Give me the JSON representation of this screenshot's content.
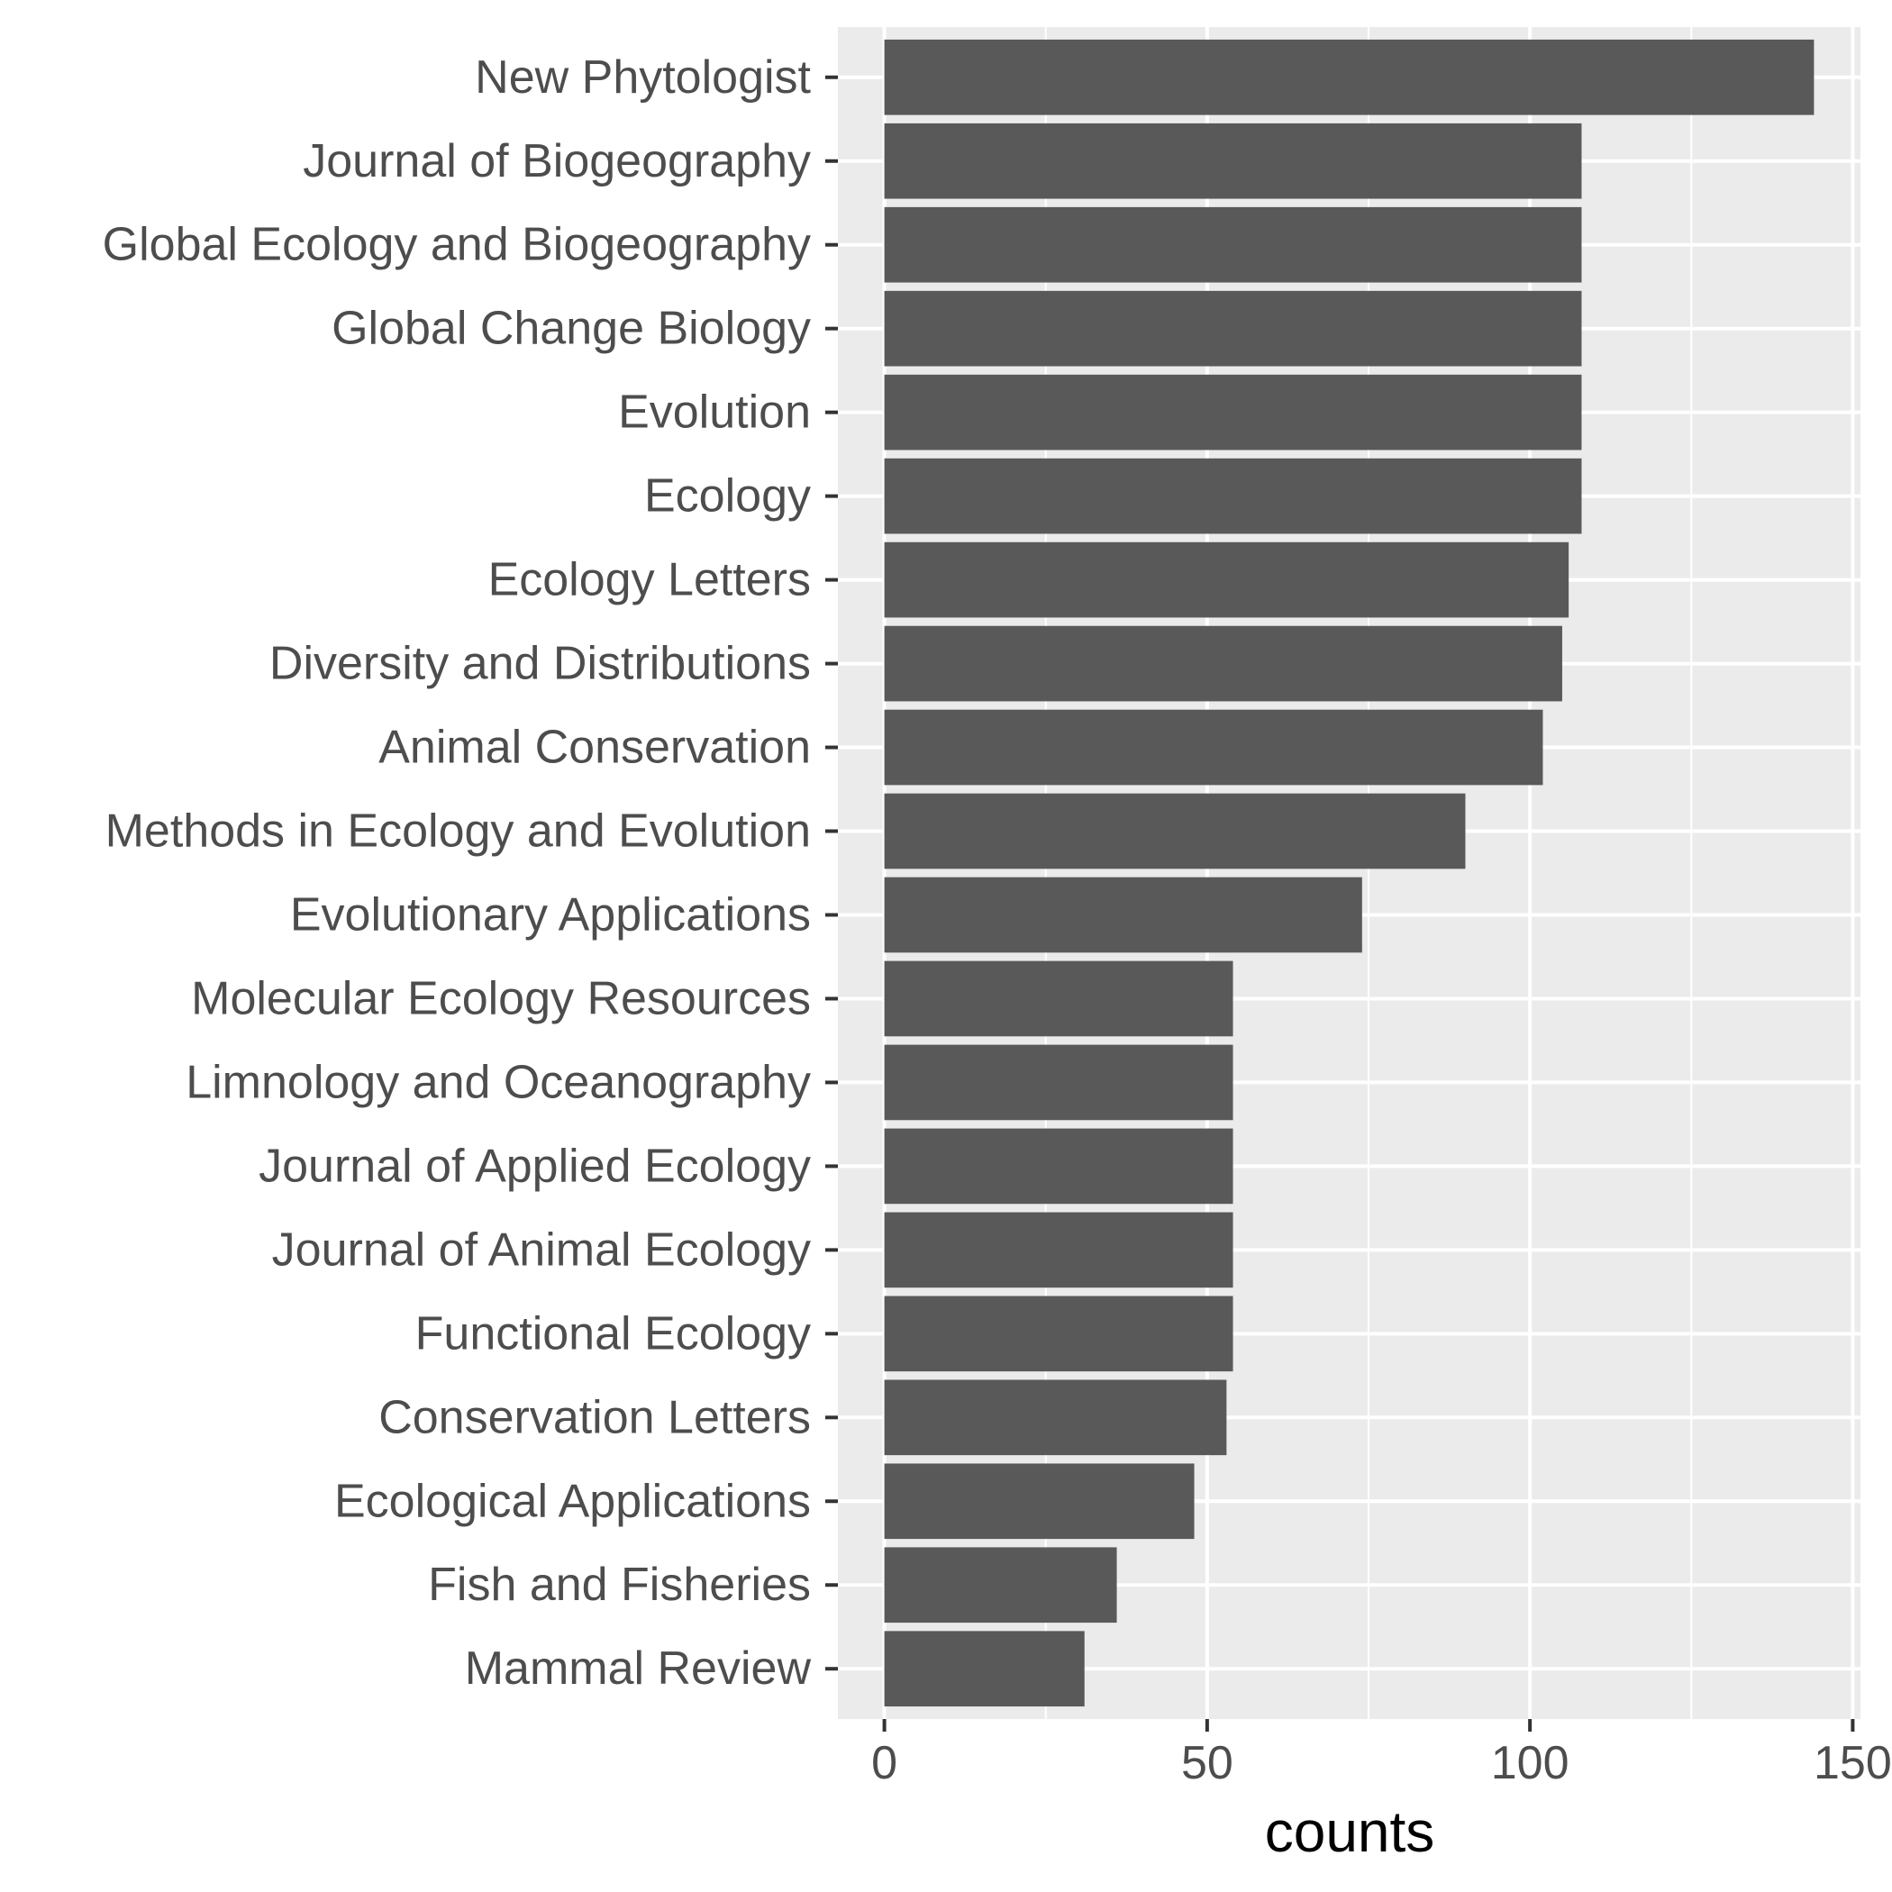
{
  "chart_data": {
    "type": "bar",
    "orientation": "horizontal",
    "categories": [
      "New Phytologist",
      "Journal of Biogeography",
      "Global Ecology and Biogeography",
      "Global Change Biology",
      "Evolution",
      "Ecology",
      "Ecology Letters",
      "Diversity and Distributions",
      "Animal Conservation",
      "Methods in Ecology and Evolution",
      "Evolutionary Applications",
      "Molecular Ecology Resources",
      "Limnology and Oceanography",
      "Journal of Applied Ecology",
      "Journal of Animal Ecology",
      "Functional Ecology",
      "Conservation Letters",
      "Ecological Applications",
      "Fish and Fisheries",
      "Mammal Review"
    ],
    "values": [
      144,
      108,
      108,
      108,
      108,
      108,
      106,
      105,
      102,
      90,
      74,
      54,
      54,
      54,
      54,
      54,
      53,
      48,
      36,
      31
    ],
    "xlabel": "counts",
    "ylabel": "",
    "title": "",
    "xlim": [
      -7.2,
      151.2
    ],
    "xticks": [
      0,
      50,
      100,
      150
    ],
    "grid": true,
    "colors": {
      "bar": "#595959",
      "panel": "#ebebeb",
      "grid": "#ffffff",
      "tick_text": "#4d4d4d",
      "axis_title": "#000000"
    }
  }
}
